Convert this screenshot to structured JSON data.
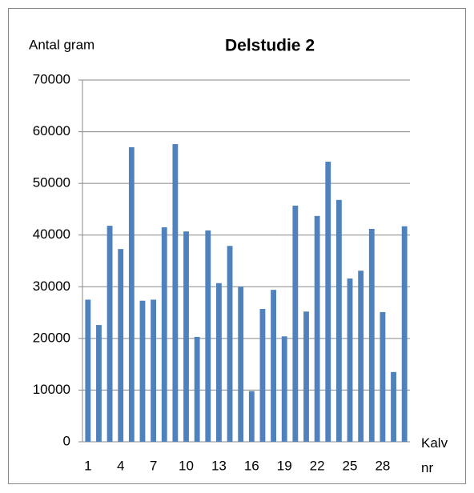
{
  "chart_data": {
    "type": "bar",
    "title": "Delstudie 2",
    "y_label": "Antal gram",
    "x_label": "Kalv nr",
    "categories": [
      "1",
      null,
      null,
      "4",
      null,
      null,
      "7",
      null,
      null,
      "10",
      null,
      null,
      "13",
      null,
      null,
      "16",
      null,
      null,
      "19",
      null,
      null,
      "22",
      null,
      null,
      "25",
      null,
      null,
      "28",
      null,
      null
    ],
    "values": [
      27500,
      22600,
      41800,
      37300,
      57000,
      27300,
      27500,
      41500,
      57600,
      40700,
      20300,
      40900,
      30700,
      37900,
      30000,
      9800,
      25700,
      29400,
      20400,
      45700,
      25200,
      43700,
      54200,
      46800,
      31600,
      33100,
      41200,
      25100,
      13500,
      41700
    ],
    "color": "#4f81bd",
    "ylim": [
      0,
      70000
    ],
    "yticks": [
      0,
      10000,
      20000,
      30000,
      40000,
      50000,
      60000,
      70000
    ],
    "grid": true
  }
}
